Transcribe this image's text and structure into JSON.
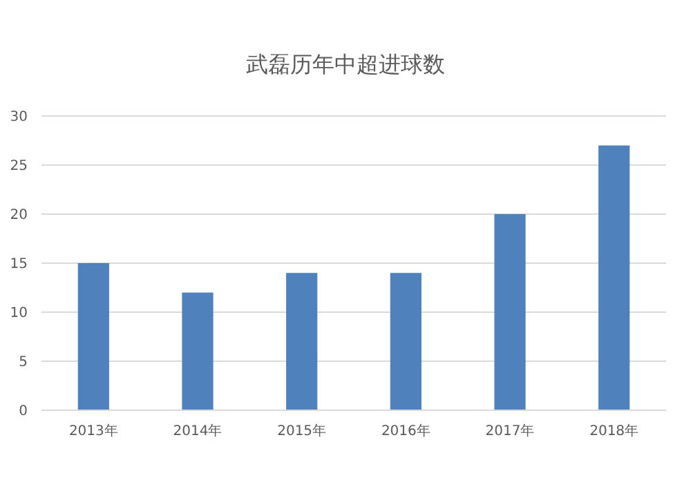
{
  "chart_data": {
    "type": "bar",
    "title": "武磊历年中超进球数",
    "categories": [
      "2013年",
      "2014年",
      "2015年",
      "2016年",
      "2017年",
      "2018年"
    ],
    "values": [
      15,
      12,
      14,
      14,
      20,
      27
    ],
    "color": "#4f81bd",
    "ylim": [
      0,
      30
    ],
    "yticks": [
      0,
      5,
      10,
      15,
      20,
      25,
      30
    ],
    "grid": "y"
  }
}
